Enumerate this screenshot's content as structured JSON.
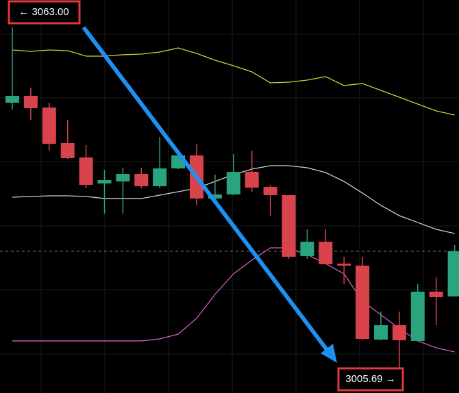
{
  "chart_data": {
    "type": "candlestick",
    "open": [
      3050.39,
      3051.54,
      3049.59,
      3043.63,
      3041.22,
      3036.87,
      3037.21,
      3038.47,
      3036.41,
      3039.39,
      3041.56,
      3034.35,
      3035.03,
      3038.82,
      3036.3,
      3034.92,
      3024.72,
      3027.12,
      3023.46,
      3023.12,
      3010.74,
      3013.14,
      3010.51,
      3018.76,
      3017.96
    ],
    "high": [
      3063.0,
      3052.91,
      3050.39,
      3047.53,
      3043.29,
      3039.16,
      3039.5,
      3039.5,
      3044.66,
      3042.14,
      3043.51,
      3038.36,
      3041.8,
      3042.37,
      3036.64,
      3034.92,
      3029.19,
      3029.19,
      3024.6,
      3024.6,
      3015.43,
      3015.43,
      3020.02,
      3021.17,
      3026.55
    ],
    "low": [
      3049.25,
      3047.53,
      3042.37,
      3040.99,
      3036.06,
      3031.83,
      3031.83,
      3036.06,
      3036.06,
      3039.27,
      3033.2,
      3034.12,
      3034.92,
      3035.49,
      3031.48,
      3024.26,
      3024.26,
      3023.35,
      3020.02,
      3010.62,
      3010.62,
      3005.69,
      3010.51,
      3013.14,
      3017.96
    ],
    "close": [
      3051.54,
      3049.47,
      3043.51,
      3041.11,
      3036.64,
      3037.44,
      3038.47,
      3036.41,
      3039.39,
      3041.56,
      3034.35,
      3035.03,
      3038.82,
      3036.18,
      3034.92,
      3024.6,
      3027.12,
      3023.35,
      3023.12,
      3010.85,
      3013.14,
      3010.62,
      3018.76,
      3017.84,
      3025.52
    ],
    "up_color": "#2aa37f",
    "down_color": "#d9434b",
    "lines": [
      {
        "color": "#d6cf3a",
        "values": [
          3059.22,
          3058.99,
          3059.22,
          3059.1,
          3058.19,
          3058.19,
          3058.42,
          3058.53,
          3058.87,
          3059.56,
          3058.64,
          3057.5,
          3056.58,
          3055.55,
          3053.72,
          3053.83,
          3054.17,
          3054.75,
          3053.26,
          3053.6,
          3052.45,
          3051.31,
          3050.16,
          3049.02,
          3048.33
        ]
      },
      {
        "color": "#cfcfcf",
        "values": [
          3034.57,
          3034.69,
          3034.8,
          3034.8,
          3034.69,
          3034.35,
          3034.35,
          3034.35,
          3034.92,
          3035.49,
          3036.06,
          3037.21,
          3038.36,
          3039.27,
          3039.85,
          3039.85,
          3039.5,
          3038.7,
          3037.21,
          3035.26,
          3033.2,
          3031.48,
          3030.34,
          3029.19,
          3028.5
        ]
      },
      {
        "color": "#d65cc4",
        "values": [
          3010.51,
          3010.51,
          3010.51,
          3010.51,
          3010.51,
          3010.51,
          3010.51,
          3010.51,
          3010.85,
          3011.65,
          3014.29,
          3018.3,
          3021.74,
          3024.03,
          3026.09,
          3026.09,
          3024.95,
          3023.46,
          3021.74,
          3017.16,
          3014.87,
          3012.58,
          3010.51,
          3009.36,
          3008.67
        ]
      }
    ],
    "annotations": [
      {
        "text": "← 3063.00"
      },
      {
        "text": "3005.69 →"
      }
    ]
  }
}
